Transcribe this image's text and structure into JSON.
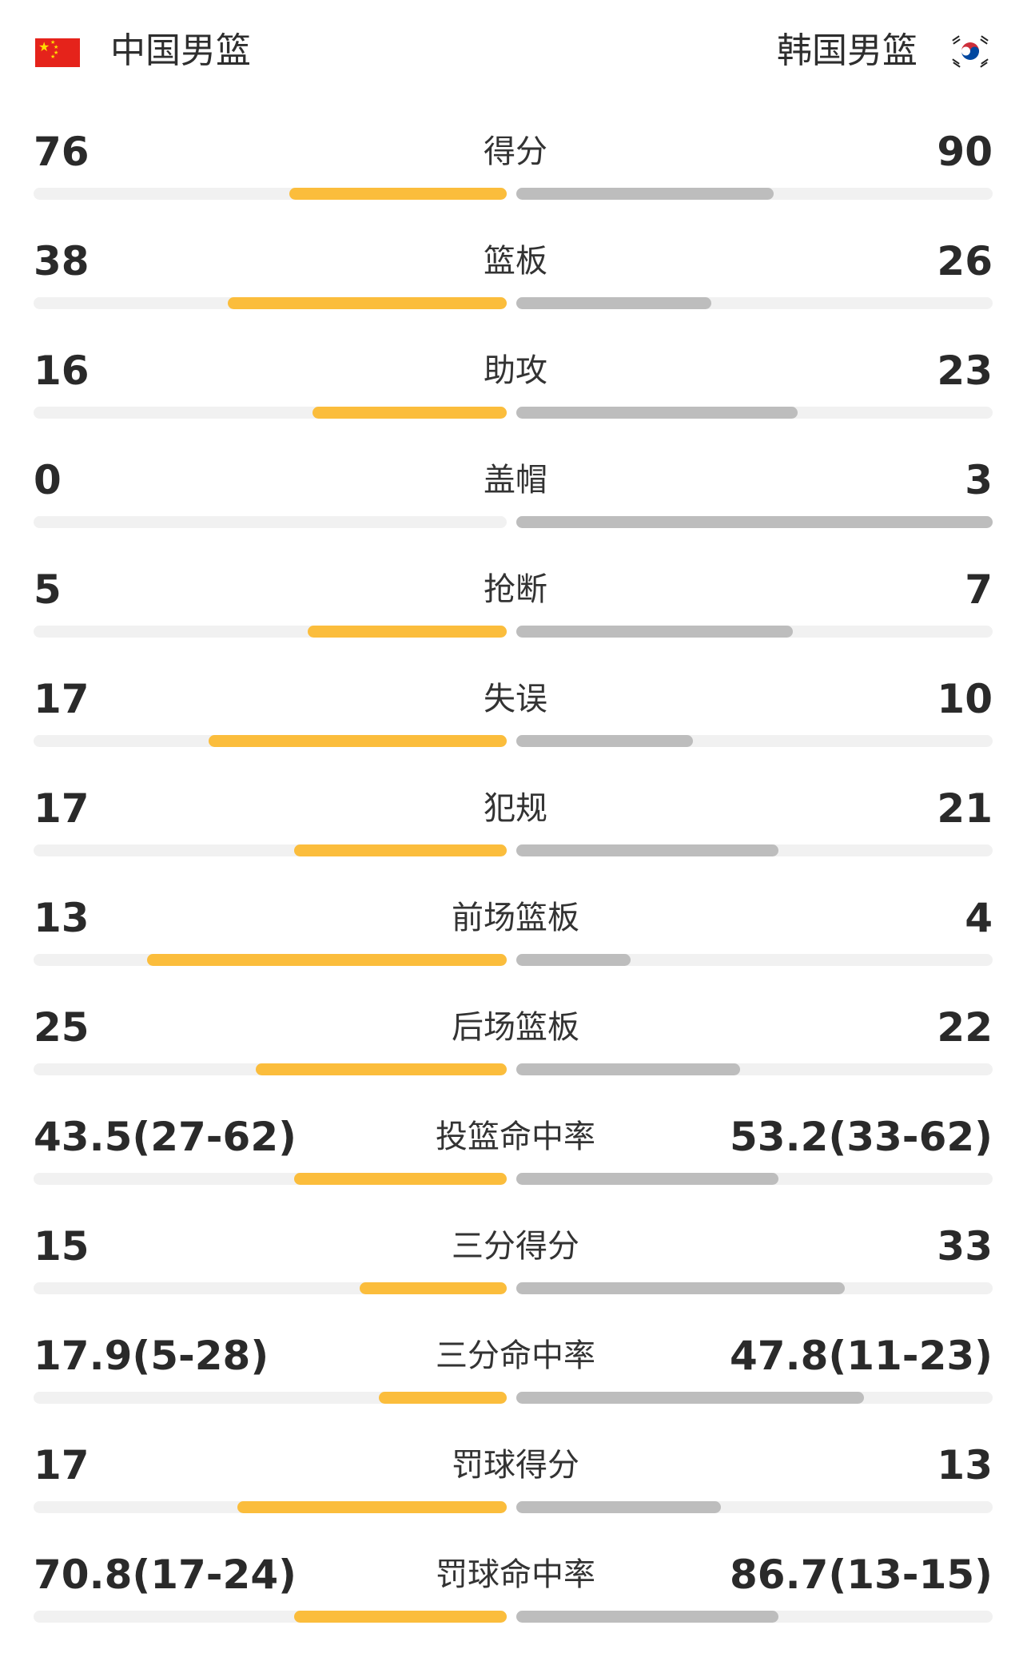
{
  "header": {
    "home_team": "中国男篮",
    "away_team": "韩国男篮",
    "home_flag": "china-flag-icon",
    "away_flag": "south-korea-flag-icon"
  },
  "colors": {
    "home_bar": "#fbbd3c",
    "away_bar": "#bdbdbd",
    "track": "#f1f1f1"
  },
  "stats": [
    {
      "label": "得分",
      "home": "76",
      "away": "90",
      "home_share": 0.46,
      "away_share": 0.54
    },
    {
      "label": "篮板",
      "home": "38",
      "away": "26",
      "home_share": 0.59,
      "away_share": 0.41
    },
    {
      "label": "助攻",
      "home": "16",
      "away": "23",
      "home_share": 0.41,
      "away_share": 0.59
    },
    {
      "label": "盖帽",
      "home": "0",
      "away": "3",
      "home_share": 0.0,
      "away_share": 1.0
    },
    {
      "label": "抢断",
      "home": "5",
      "away": "7",
      "home_share": 0.42,
      "away_share": 0.58
    },
    {
      "label": "失误",
      "home": "17",
      "away": "10",
      "home_share": 0.63,
      "away_share": 0.37
    },
    {
      "label": "犯规",
      "home": "17",
      "away": "21",
      "home_share": 0.45,
      "away_share": 0.55
    },
    {
      "label": "前场篮板",
      "home": "13",
      "away": "4",
      "home_share": 0.76,
      "away_share": 0.24
    },
    {
      "label": "后场篮板",
      "home": "25",
      "away": "22",
      "home_share": 0.53,
      "away_share": 0.47
    },
    {
      "label": "投篮命中率",
      "home": "43.5(27-62)",
      "away": "53.2(33-62)",
      "home_share": 0.45,
      "away_share": 0.55
    },
    {
      "label": "三分得分",
      "home": "15",
      "away": "33",
      "home_share": 0.31,
      "away_share": 0.69
    },
    {
      "label": "三分命中率",
      "home": "17.9(5-28)",
      "away": "47.8(11-23)",
      "home_share": 0.27,
      "away_share": 0.73
    },
    {
      "label": "罚球得分",
      "home": "17",
      "away": "13",
      "home_share": 0.57,
      "away_share": 0.43
    },
    {
      "label": "罚球命中率",
      "home": "70.8(17-24)",
      "away": "86.7(13-15)",
      "home_share": 0.45,
      "away_share": 0.55
    }
  ]
}
